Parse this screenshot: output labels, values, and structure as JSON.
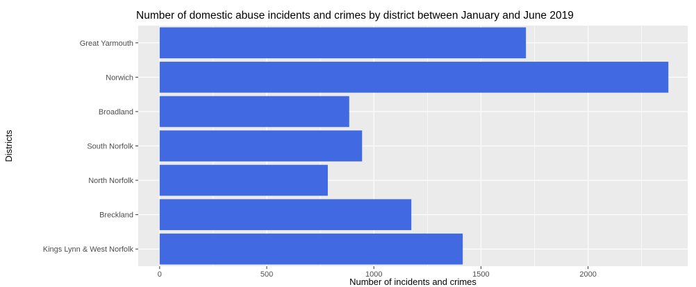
{
  "chart_data": {
    "type": "bar",
    "orientation": "horizontal",
    "title": "Number of domestic abuse incidents and crimes by district between January and June 2019",
    "xlabel": "Number of incidents and crimes",
    "ylabel": "Districts",
    "categories": [
      "Great Yarmouth",
      "Norwich",
      "Broadland",
      "South Norfolk",
      "North Norfolk",
      "Breckland",
      "Kings Lynn & West Norfolk"
    ],
    "values": [
      1710,
      2375,
      885,
      945,
      785,
      1175,
      1415
    ],
    "xlim": [
      -100,
      2465
    ],
    "xticks": [
      0,
      500,
      1000,
      1500,
      2000
    ],
    "xtick_labels": [
      "0",
      "500",
      "1000",
      "1500",
      "2000"
    ],
    "bar_color": "#4169e1",
    "panel_background": "#ebebeb",
    "grid": true,
    "legend": "none"
  }
}
